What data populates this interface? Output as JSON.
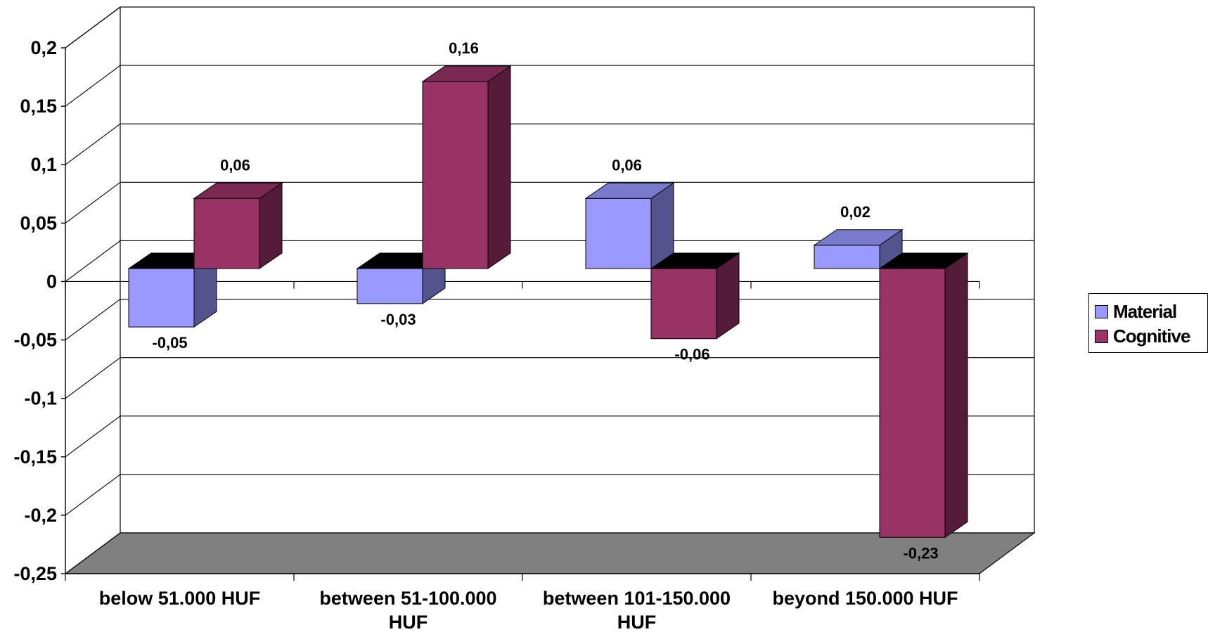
{
  "chart_data": {
    "type": "bar",
    "categories": [
      "below 51.000 HUF",
      "between 51-100.000 HUF",
      "between 101-150.000 HUF",
      "beyond 150.000 HUF"
    ],
    "category_lines": [
      [
        "below 51.000 HUF"
      ],
      [
        "between 51-100.000",
        "HUF"
      ],
      [
        "between 101-150.000",
        "HUF"
      ],
      [
        "beyond 150.000 HUF"
      ]
    ],
    "series": [
      {
        "name": "Material",
        "values": [
          -0.05,
          -0.03,
          0.06,
          0.02
        ],
        "labels": [
          "-0,05",
          "-0,03",
          "0,06",
          "0,02"
        ],
        "color": "#9999ff"
      },
      {
        "name": "Cognitive",
        "values": [
          0.06,
          0.16,
          -0.06,
          -0.23
        ],
        "labels": [
          "0,06",
          "0,16",
          "-0,06",
          "-0,23"
        ],
        "color": "#993366"
      }
    ],
    "yticks": [
      0.2,
      0.15,
      0.1,
      0.05,
      0,
      -0.05,
      -0.1,
      -0.15,
      -0.2,
      -0.25
    ],
    "ytick_labels": [
      "0,2",
      "0,15",
      "0,1",
      "0,05",
      "0",
      "-0,05",
      "-0,1",
      "-0,15",
      "-0,2",
      "-0,25"
    ],
    "ylim": [
      -0.25,
      0.2
    ],
    "grid": true,
    "three_d": true,
    "legend_position": "right",
    "title": "",
    "xlabel": "",
    "ylabel": ""
  }
}
